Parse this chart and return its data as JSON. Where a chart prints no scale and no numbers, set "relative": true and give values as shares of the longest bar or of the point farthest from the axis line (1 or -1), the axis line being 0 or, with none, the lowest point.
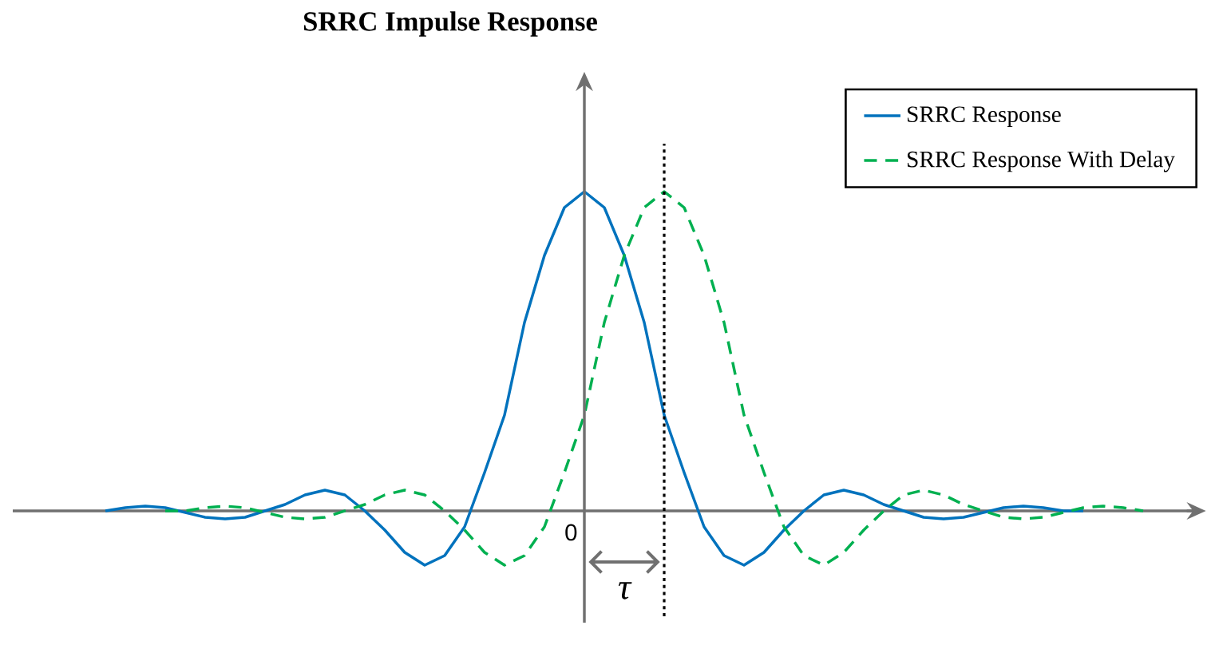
{
  "chart_data": {
    "type": "line",
    "title": "SRRC Impulse Response",
    "relative": true,
    "categories": [
      null,
      null,
      null,
      null,
      null,
      null,
      null,
      null,
      null,
      null,
      null,
      null,
      null,
      null,
      null,
      null,
      null,
      null,
      null,
      null,
      null,
      null,
      null,
      null,
      null,
      null,
      null,
      null,
      null,
      null,
      null,
      null,
      null,
      null,
      null,
      null,
      null,
      null,
      null,
      null,
      null,
      null,
      null,
      null,
      null,
      null,
      null,
      null,
      null,
      null,
      null,
      null,
      null
    ],
    "legend": "top right",
    "series": [
      {
        "name": "SRRC Response",
        "color": "#0072bd",
        "line_style": "solid",
        "values": [
          0.0,
          0.01,
          0.015,
          0.01,
          -0.005,
          -0.02,
          -0.025,
          -0.02,
          0.0,
          0.02,
          0.05,
          0.065,
          0.05,
          0.0,
          -0.06,
          -0.13,
          -0.17,
          -0.14,
          -0.05,
          0.12,
          0.3,
          0.59,
          0.8,
          0.95,
          1,
          0.95,
          0.8,
          0.59,
          0.3,
          0.12,
          -0.05,
          -0.14,
          -0.17,
          -0.13,
          -0.06,
          0.0,
          0.05,
          0.065,
          0.05,
          0.02,
          0.0,
          -0.02,
          -0.025,
          -0.02,
          -0.005,
          0.01,
          0.015,
          0.01,
          0.0,
          0.0,
          null,
          null,
          null
        ]
      },
      {
        "name": "SRRC Response With Delay",
        "color": "#00b050",
        "line_style": "dashed",
        "values": [
          null,
          null,
          null,
          0.0,
          0.0,
          0.01,
          0.015,
          0.01,
          -0.005,
          -0.02,
          -0.025,
          -0.02,
          0.0,
          0.02,
          0.05,
          0.065,
          0.05,
          0.0,
          -0.06,
          -0.13,
          -0.17,
          -0.14,
          -0.05,
          0.12,
          0.3,
          0.59,
          0.8,
          0.95,
          1,
          0.95,
          0.8,
          0.59,
          0.3,
          0.12,
          -0.05,
          -0.14,
          -0.17,
          -0.13,
          -0.06,
          0.0,
          0.05,
          0.065,
          0.05,
          0.02,
          0.0,
          -0.02,
          -0.025,
          -0.02,
          -0.005,
          0.01,
          0.015,
          0.01,
          0.0
        ]
      }
    ],
    "annotations": [
      "τ",
      "0"
    ]
  }
}
